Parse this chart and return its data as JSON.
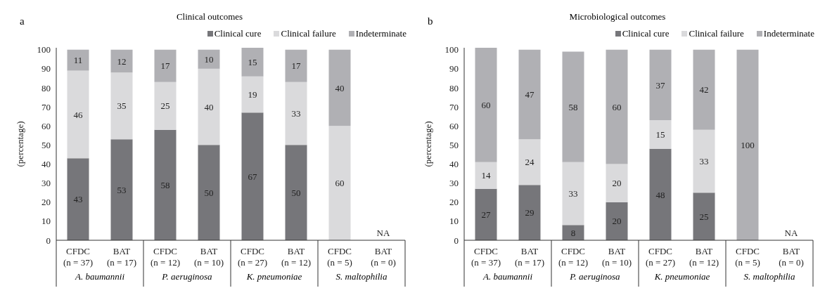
{
  "chart_data": [
    {
      "type": "bar",
      "title": "Clinical outcomes",
      "ylabel": "(percentage)",
      "stacked": true,
      "data_labels": true,
      "legend": "top",
      "categories": [
        "CFDC (n = 37)",
        "BAT (n = 17)",
        "CFDC (n = 12)",
        "BAT (n = 10)",
        "CFDC (n = 27)",
        "BAT (n = 12)",
        "CFDC (n = 5)",
        "BAT (n = 0)"
      ],
      "ylim": [
        0,
        101
      ],
      "yticks": [
        0,
        10,
        20,
        30,
        40,
        50,
        60,
        70,
        80,
        90,
        100
      ],
      "annotations": [
        "a",
        "A. baumannii",
        "P. aeruginosa",
        "K. pneumoniae",
        "S. maltophilia",
        "NA"
      ],
      "series": [
        {
          "name": "Clinical cure",
          "color": "#76767a",
          "values": [
            43,
            53,
            58,
            50,
            67,
            50,
            null,
            null
          ]
        },
        {
          "name": "Clinical failure",
          "color": "#dadadc",
          "values": [
            46,
            35,
            25,
            40,
            19,
            33,
            60,
            null
          ]
        },
        {
          "name": "Indeterminate",
          "color": "#b0b0b4",
          "values": [
            11,
            12,
            17,
            10,
            15,
            17,
            40,
            null
          ]
        }
      ]
    },
    {
      "type": "bar",
      "title": "Microbiological outcomes",
      "ylabel": "(percentage)",
      "stacked": true,
      "data_labels": true,
      "legend": "top",
      "categories": [
        "CFDC (n = 37)",
        "BAT (n = 17)",
        "CFDC (n = 12)",
        "BAT (n = 10)",
        "CFDC (n = 27)",
        "BAT (n = 12)",
        "CFDC (n = 5)",
        "BAT (n = 0)"
      ],
      "ylim": [
        0,
        101
      ],
      "yticks": [
        0,
        10,
        20,
        30,
        40,
        50,
        60,
        70,
        80,
        90,
        100
      ],
      "annotations": [
        "b",
        "A. baumannii",
        "P. aeruginosa",
        "K. pneumoniae",
        "S. maltophilia",
        "NA"
      ],
      "series": [
        {
          "name": "Clinical cure",
          "color": "#76767a",
          "values": [
            27,
            29,
            8,
            20,
            48,
            25,
            null,
            null
          ]
        },
        {
          "name": "Clinical failure",
          "color": "#dadadc",
          "values": [
            14,
            24,
            33,
            20,
            15,
            33,
            null,
            null
          ]
        },
        {
          "name": "Indeterminate",
          "color": "#b0b0b4",
          "values": [
            60,
            47,
            58,
            60,
            37,
            42,
            100,
            null
          ]
        }
      ]
    }
  ]
}
